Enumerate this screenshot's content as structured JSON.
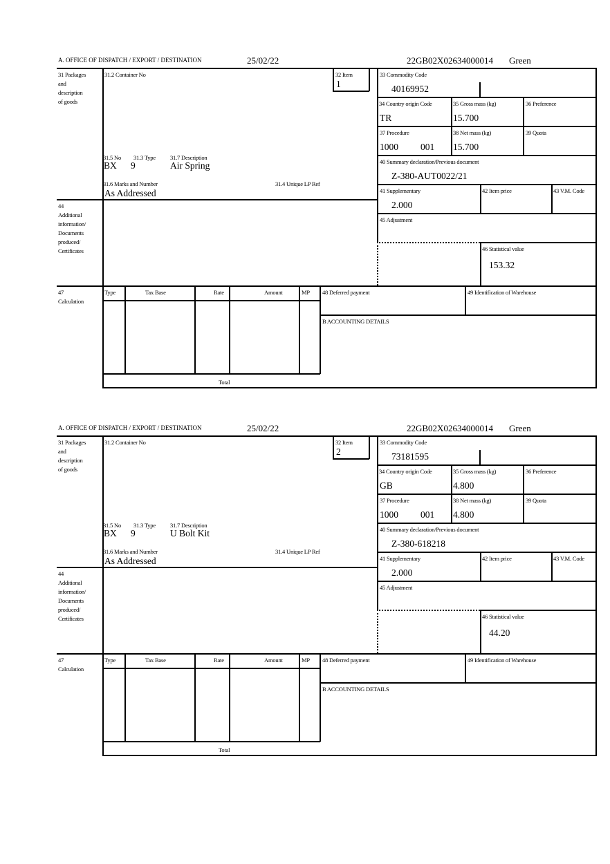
{
  "labels": {
    "office": "A. OFFICE OF DISPATCH / EXPORT / DESTINATION",
    "b31": [
      "31 Packages",
      "and",
      "description",
      "of goods"
    ],
    "b31_2": "31.2 Container No",
    "b32": "32 Item",
    "b31_5": "31.5 No",
    "b31_3": "31.3 Type",
    "b31_7": "31.7 Description",
    "b31_6": "31.6 Marks and Number",
    "b31_4": "31.4 Unique LP Ref",
    "b33": "33 Commodity Code",
    "b34": "34 Country origin Code",
    "b35": "35 Gross mass (kg)",
    "b36": "36 Preference",
    "b37": "37 Procedure",
    "b38": "38 Net mass (kg)",
    "b39": "39 Quota",
    "b40": "40 Summary declaration/Previous document",
    "b41": "41 Supplementary",
    "b42": "42 Item price",
    "b43": "43 V.M. Code",
    "b44": [
      "44",
      "Additional",
      "information/",
      "Documents",
      "produced/",
      "Certificates"
    ],
    "b45": "45 Adjustment",
    "b46": "46 Statistical value",
    "b47": [
      "47",
      "Calculation"
    ],
    "calc_cols": [
      "Type",
      "Tax Base",
      "Rate",
      "Amount",
      "MP"
    ],
    "total": "Total",
    "b48": "48 Deferred payment",
    "b49": "49 Identification of Warehouse",
    "bacc": "B ACCOUNTING DETAILS"
  },
  "items": [
    {
      "date": "25/02/22",
      "reference": "22GB02X02634000014",
      "route": "Green",
      "item_no": "1",
      "package_no": "BX",
      "package_type": "9",
      "description": "Air Spring",
      "marks": "As Addressed",
      "commodity_code": "40169952",
      "country_origin": "TR",
      "gross_mass": "15.700",
      "procedure": "1000",
      "procedure_add": "001",
      "net_mass": "15.700",
      "previous_document": "Z-380-AUT0022/21",
      "supplementary": "2.000",
      "statistical_value": "153.32"
    },
    {
      "date": "25/02/22",
      "reference": "22GB02X02634000014",
      "route": "Green",
      "item_no": "2",
      "package_no": "BX",
      "package_type": "9",
      "description": "U Bolt Kit",
      "marks": "As Addressed",
      "commodity_code": "73181595",
      "country_origin": "GB",
      "gross_mass": "4.800",
      "procedure": "1000",
      "procedure_add": "001",
      "net_mass": "4.800",
      "previous_document": "Z-380-618218",
      "supplementary": "2.000",
      "statistical_value": "44.20"
    }
  ]
}
